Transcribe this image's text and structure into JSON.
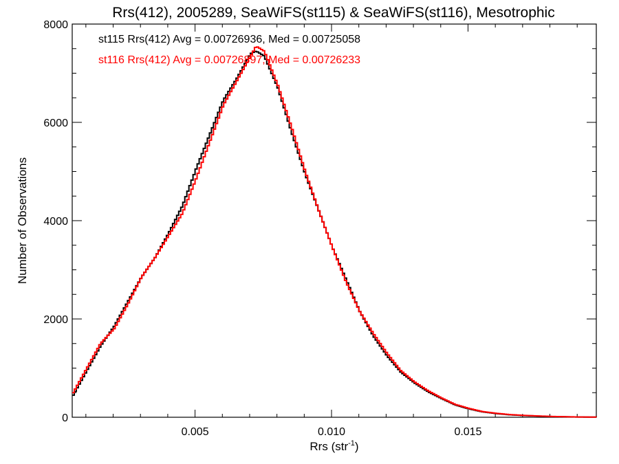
{
  "chart_data": {
    "type": "line",
    "title": "Rrs(412), 2005289, SeaWiFS(st115) & SeaWiFS(st116), Mesotrophic",
    "xlabel": "Rrs (str",
    "xlabel_sup": "-1",
    "xlabel_end": ")",
    "ylabel": "Number of Observations",
    "xlim": [
      0.0005,
      0.0197
    ],
    "ylim": [
      0,
      8000
    ],
    "x_ticks": [
      {
        "value": 0.005,
        "label": "0.005"
      },
      {
        "value": 0.01,
        "label": "0.010"
      },
      {
        "value": 0.015,
        "label": "0.015"
      }
    ],
    "y_ticks": [
      {
        "value": 0,
        "label": "0"
      },
      {
        "value": 2000,
        "label": "2000"
      },
      {
        "value": 4000,
        "label": "4000"
      },
      {
        "value": 6000,
        "label": "6000"
      },
      {
        "value": 8000,
        "label": "8000"
      }
    ],
    "grid": false,
    "annotations": [
      {
        "text": "st115 Rrs(412) Avg = 0.00726936, Med = 0.00725058",
        "color": "#000000"
      },
      {
        "text": "st116 Rrs(412) Avg = 0.00726897, Med = 0.00726233",
        "color": "#ff0000"
      }
    ],
    "series": [
      {
        "color": "#000000",
        "step": true,
        "x": [
          0.0005,
          0.001,
          0.0015,
          0.002,
          0.0025,
          0.003,
          0.0035,
          0.004,
          0.0045,
          0.005,
          0.0055,
          0.006,
          0.0065,
          0.007,
          0.0072,
          0.0075,
          0.008,
          0.0085,
          0.009,
          0.0095,
          0.01,
          0.0105,
          0.011,
          0.0115,
          0.012,
          0.0125,
          0.013,
          0.0135,
          0.014,
          0.0145,
          0.015,
          0.0155,
          0.016,
          0.0165,
          0.017,
          0.0175,
          0.018,
          0.0185,
          0.019,
          0.0197
        ],
        "y": [
          450,
          950,
          1450,
          1850,
          2350,
          2850,
          3250,
          3750,
          4300,
          5050,
          5750,
          6450,
          6900,
          7400,
          7450,
          7350,
          6700,
          5800,
          4950,
          4200,
          3450,
          2800,
          2150,
          1650,
          1250,
          920,
          700,
          520,
          380,
          250,
          170,
          110,
          75,
          50,
          35,
          25,
          15,
          10,
          5,
          3
        ]
      },
      {
        "color": "#ff0000",
        "step": true,
        "x": [
          0.0005,
          0.001,
          0.0015,
          0.002,
          0.0025,
          0.003,
          0.0035,
          0.004,
          0.0045,
          0.005,
          0.0055,
          0.006,
          0.0065,
          0.007,
          0.0072,
          0.0075,
          0.008,
          0.0085,
          0.009,
          0.0095,
          0.01,
          0.0105,
          0.011,
          0.0115,
          0.012,
          0.0125,
          0.013,
          0.0135,
          0.014,
          0.0145,
          0.015,
          0.0155,
          0.016,
          0.0165,
          0.017,
          0.0175,
          0.018,
          0.0185,
          0.019,
          0.0197
        ],
        "y": [
          500,
          1000,
          1500,
          1800,
          2300,
          2850,
          3250,
          3700,
          4150,
          4850,
          5600,
          6350,
          6850,
          7350,
          7550,
          7450,
          6750,
          5900,
          5000,
          4200,
          3450,
          2750,
          2150,
          1700,
          1300,
          950,
          720,
          540,
          390,
          260,
          180,
          115,
          80,
          55,
          38,
          27,
          17,
          11,
          6,
          3
        ]
      }
    ]
  }
}
